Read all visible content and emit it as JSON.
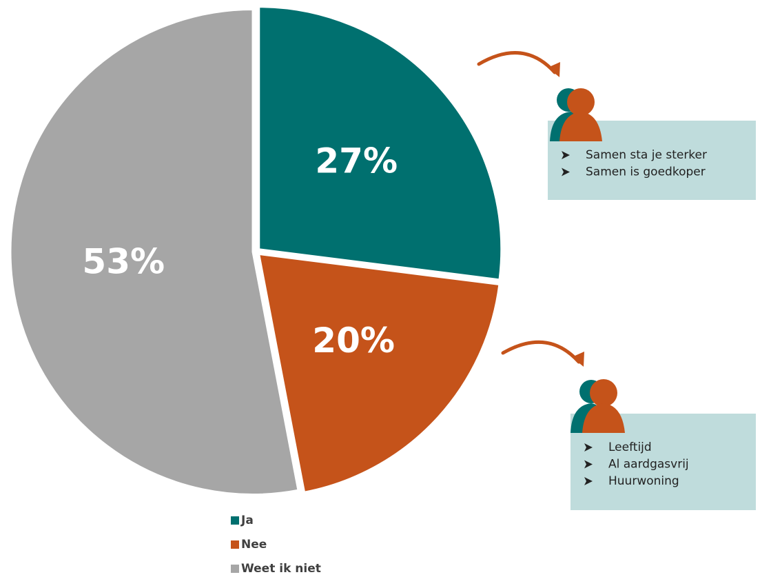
{
  "chart_data": {
    "type": "pie",
    "categories": [
      "Ja",
      "Nee",
      "Weet ik niet"
    ],
    "values": [
      27,
      20,
      53
    ],
    "value_labels": [
      "27%",
      "20%",
      "53%"
    ],
    "colors": [
      "#00706f",
      "#c5531a",
      "#a6a6a6"
    ],
    "legend": "bottom",
    "annotations": [
      {
        "items": [
          "Samen sta je sterker",
          "Samen is goedkoper"
        ]
      },
      {
        "items": [
          "Leeftijd",
          "Al aardgasvrij",
          "Huurwoning"
        ]
      }
    ]
  }
}
